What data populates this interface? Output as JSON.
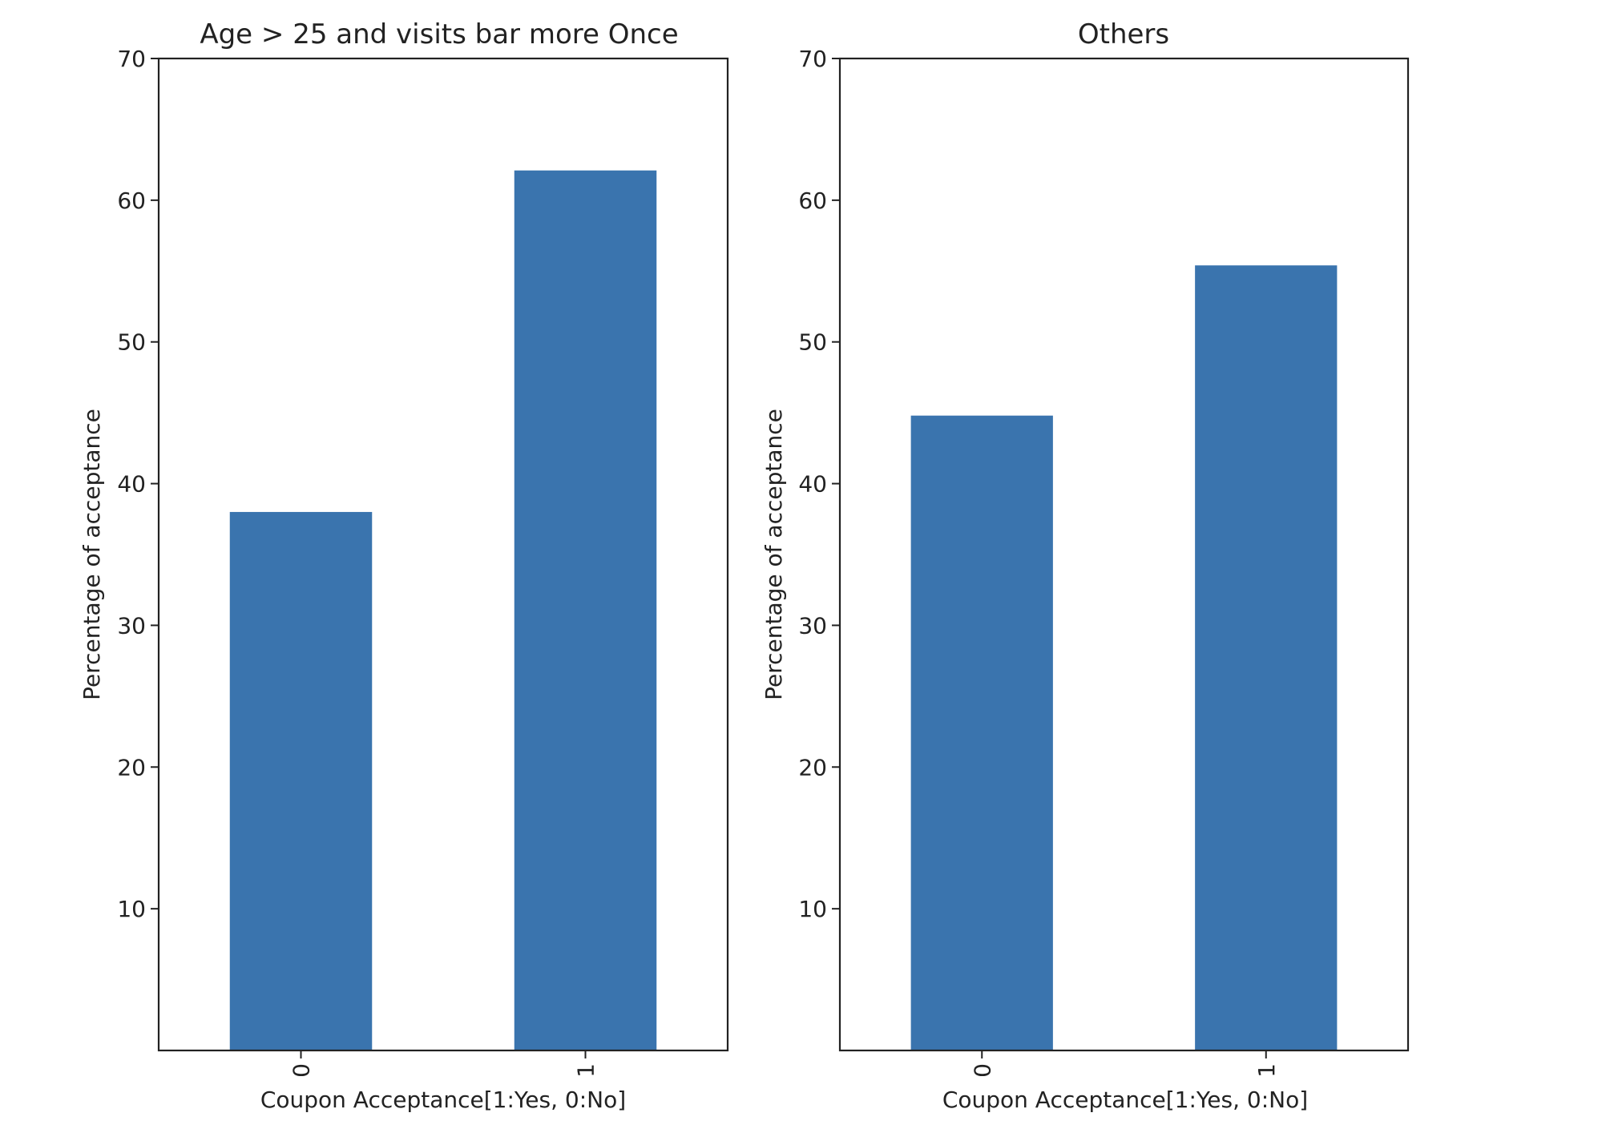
{
  "chart_data": [
    {
      "type": "bar",
      "title": "Age > 25 and visits bar more Once",
      "categories": [
        "0",
        "1"
      ],
      "values": [
        38,
        62.1
      ],
      "xlabel": "Coupon Acceptance[1:Yes, 0:No]",
      "ylabel": "Percentage of acceptance",
      "ylim": [
        0,
        70
      ],
      "yticks": [
        10,
        20,
        30,
        40,
        50,
        60,
        70
      ],
      "bar_color": "#3a74ae",
      "grid": false
    },
    {
      "type": "bar",
      "title": "Others",
      "categories": [
        "0",
        "1"
      ],
      "values": [
        44.8,
        55.4
      ],
      "xlabel": "Coupon Acceptance[1:Yes, 0:No]",
      "ylabel": "Percentage of acceptance",
      "ylim": [
        0,
        70
      ],
      "yticks": [
        10,
        20,
        30,
        40,
        50,
        60,
        70
      ],
      "bar_color": "#3a74ae",
      "grid": false
    }
  ]
}
